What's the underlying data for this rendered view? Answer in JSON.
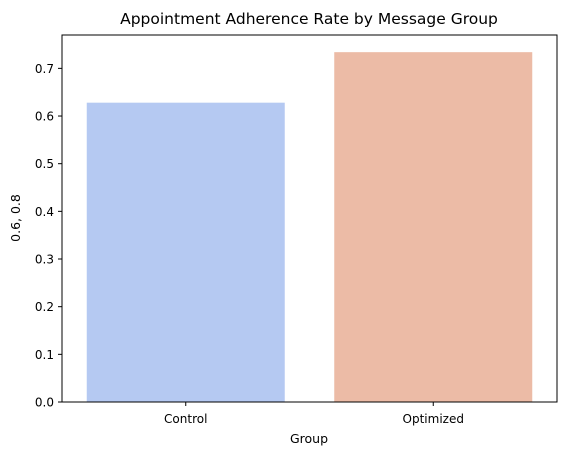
{
  "chart_data": {
    "type": "bar",
    "title": "Appointment Adherence Rate by Message Group",
    "xlabel": "Group",
    "ylabel": "0.6, 0.8",
    "categories": [
      "Control",
      "Optimized"
    ],
    "values": [
      0.628,
      0.734
    ],
    "ylim": [
      0,
      0.77
    ],
    "yticks": [
      0.0,
      0.1,
      0.2,
      0.3,
      0.4,
      0.5,
      0.6,
      0.7
    ],
    "ytick_labels": [
      "0.0",
      "0.1",
      "0.2",
      "0.3",
      "0.4",
      "0.5",
      "0.6",
      "0.7"
    ],
    "colors": [
      "#b5c9f2",
      "#ecbba6"
    ],
    "grid": false,
    "legend": "none"
  }
}
